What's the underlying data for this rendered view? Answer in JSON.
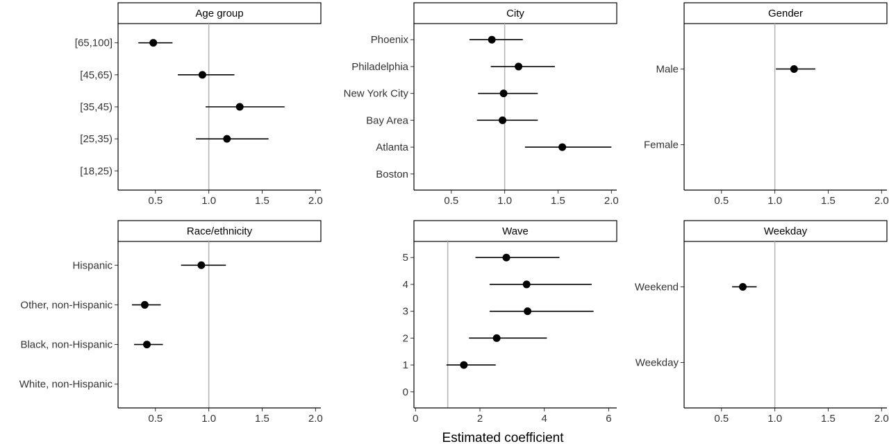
{
  "chart_data": [
    {
      "type": "scatter",
      "title": "Age group",
      "categories": [
        "[18,25)",
        "[25,35)",
        "[35,45)",
        "[45,65)",
        "[65,100]"
      ],
      "estimates": [
        null,
        1.17,
        1.29,
        0.94,
        0.48
      ],
      "ci_lower": [
        null,
        0.88,
        0.97,
        0.71,
        0.34
      ],
      "ci_upper": [
        null,
        1.56,
        1.71,
        1.24,
        0.66
      ],
      "xlim": [
        0.15,
        2.05
      ],
      "xticks": [
        "0.5",
        "1.0",
        "1.5",
        "2.0"
      ],
      "reference": 1.0
    },
    {
      "type": "scatter",
      "title": "City",
      "categories": [
        "Boston",
        "Atlanta",
        "Bay Area",
        "New York City",
        "Philadelphia",
        "Phoenix"
      ],
      "estimates": [
        null,
        1.54,
        0.98,
        0.99,
        1.13,
        0.88
      ],
      "ci_lower": [
        null,
        1.19,
        0.74,
        0.75,
        0.87,
        0.67
      ],
      "ci_upper": [
        null,
        2.0,
        1.31,
        1.31,
        1.47,
        1.17
      ],
      "xlim": [
        0.15,
        2.05
      ],
      "xticks": [
        "0.5",
        "1.0",
        "1.5",
        "2.0"
      ],
      "reference": 1.0
    },
    {
      "type": "scatter",
      "title": "Gender",
      "categories": [
        "Female",
        "Male"
      ],
      "estimates": [
        null,
        1.18
      ],
      "ci_lower": [
        null,
        1.01
      ],
      "ci_upper": [
        null,
        1.38
      ],
      "xlim": [
        0.15,
        2.05
      ],
      "xticks": [
        "0.5",
        "1.0",
        "1.5",
        "2.0"
      ],
      "reference": 1.0
    },
    {
      "type": "scatter",
      "title": "Race/ethnicity",
      "categories": [
        "White, non-Hispanic",
        "Black, non-Hispanic",
        "Other, non-Hispanic",
        "Hispanic"
      ],
      "estimates": [
        null,
        0.42,
        0.4,
        0.93
      ],
      "ci_lower": [
        null,
        0.3,
        0.28,
        0.74
      ],
      "ci_upper": [
        null,
        0.57,
        0.55,
        1.16
      ],
      "xlim": [
        0.15,
        2.05
      ],
      "xticks": [
        "0.5",
        "1.0",
        "1.5",
        "2.0"
      ],
      "reference": 1.0
    },
    {
      "type": "scatter",
      "title": "Wave",
      "categories": [
        "0",
        "1",
        "2",
        "3",
        "4",
        "5"
      ],
      "estimates": [
        null,
        1.5,
        2.52,
        3.48,
        3.45,
        2.82
      ],
      "ci_lower": [
        null,
        0.96,
        1.66,
        2.3,
        2.3,
        1.86
      ],
      "ci_upper": [
        null,
        2.49,
        4.08,
        5.53,
        5.47,
        4.47
      ],
      "xlim": [
        -0.05,
        6.25
      ],
      "xticks": [
        "0",
        "2",
        "4",
        "6"
      ],
      "reference": 1.0
    },
    {
      "type": "scatter",
      "title": "Weekday",
      "categories": [
        "Weekday",
        "Weekend"
      ],
      "estimates": [
        null,
        0.7
      ],
      "ci_lower": [
        null,
        0.6
      ],
      "ci_upper": [
        null,
        0.83
      ],
      "xlim": [
        0.15,
        2.05
      ],
      "xticks": [
        "0.5",
        "1.0",
        "1.5",
        "2.0"
      ],
      "reference": 1.0
    }
  ],
  "xlabel": "Estimated coefficient",
  "colors": {
    "point": "#000000",
    "reference_line": "#b3b3b3",
    "panel_border": "#000000"
  }
}
